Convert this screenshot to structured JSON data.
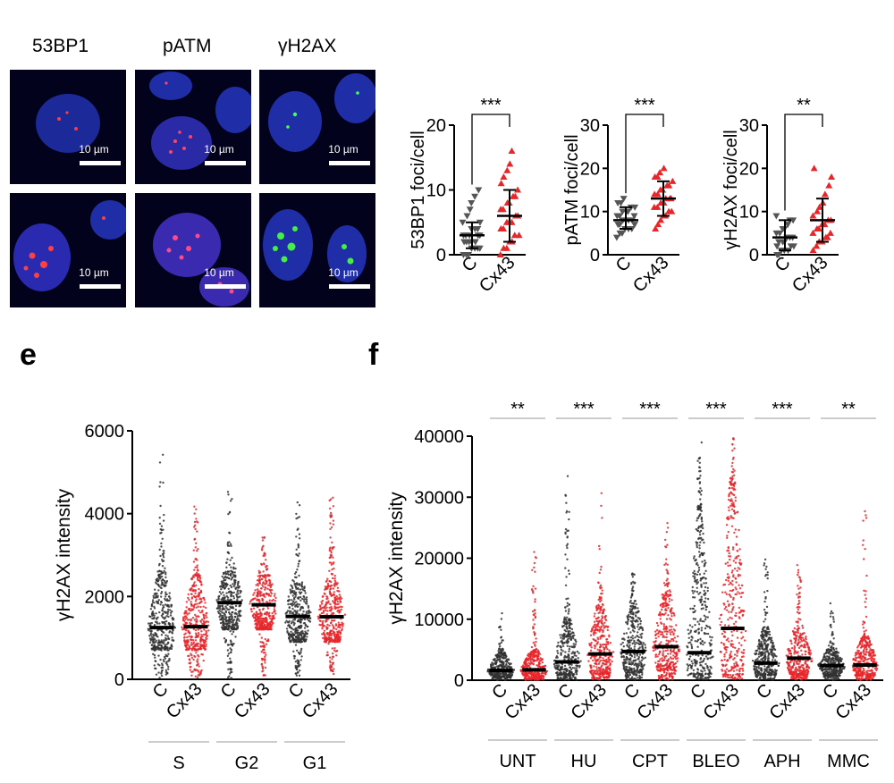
{
  "channels": [
    {
      "label": "53BP1",
      "color": "#e8262a"
    },
    {
      "label": "pATM",
      "color": "#e8262a"
    },
    {
      "label": "γH2AX",
      "color": "#2aa83a"
    }
  ],
  "scale_bar_label": "10 µm",
  "panel_letters": {
    "e": "e",
    "f": "f"
  },
  "chart_data": [
    {
      "type": "scatter",
      "ylabel": "53BP1 foci/cell",
      "ylim": [
        0,
        20
      ],
      "yticks": [
        0,
        10,
        20
      ],
      "categories": [
        "C",
        "Cx43"
      ],
      "significance": [
        "***"
      ],
      "series": [
        {
          "values": [
            0,
            0,
            0,
            1,
            1,
            1,
            1,
            2,
            2,
            2,
            2,
            2,
            3,
            3,
            3,
            3,
            3,
            4,
            4,
            4,
            5,
            5,
            6,
            7,
            8,
            9,
            10
          ],
          "mean": 3,
          "sd_low": 1,
          "sd_high": 5
        },
        {
          "values": [
            0,
            1,
            1,
            2,
            2,
            3,
            3,
            4,
            4,
            5,
            5,
            5,
            6,
            6,
            7,
            7,
            8,
            8,
            9,
            9,
            10,
            11,
            12,
            13,
            14,
            16
          ],
          "mean": 6,
          "sd_low": 2,
          "sd_high": 10
        }
      ]
    },
    {
      "type": "scatter",
      "ylabel": "pATM foci/cell",
      "ylim": [
        0,
        30
      ],
      "yticks": [
        0,
        10,
        20,
        30
      ],
      "categories": [
        "C",
        "Cx43"
      ],
      "significance": [
        "***"
      ],
      "series": [
        {
          "values": [
            4,
            5,
            5,
            6,
            6,
            6,
            7,
            7,
            7,
            8,
            8,
            8,
            8,
            9,
            9,
            9,
            10,
            10,
            10,
            11,
            11,
            12,
            12,
            13
          ],
          "mean": 8,
          "sd_low": 6,
          "sd_high": 11
        },
        {
          "values": [
            6,
            7,
            8,
            9,
            9,
            10,
            10,
            11,
            11,
            12,
            12,
            13,
            13,
            13,
            14,
            14,
            15,
            15,
            16,
            16,
            17,
            18,
            18,
            19,
            20
          ],
          "mean": 13,
          "sd_low": 9,
          "sd_high": 17
        }
      ]
    },
    {
      "type": "scatter",
      "ylabel": "γH2AX foci/cell",
      "ylim": [
        0,
        30
      ],
      "yticks": [
        0,
        10,
        20,
        30
      ],
      "categories": [
        "C",
        "Cx43"
      ],
      "significance": [
        "**"
      ],
      "series": [
        {
          "values": [
            0,
            0,
            1,
            1,
            1,
            2,
            2,
            2,
            3,
            3,
            3,
            4,
            4,
            4,
            5,
            5,
            6,
            6,
            7,
            8,
            8,
            9
          ],
          "mean": 4,
          "sd_low": 1,
          "sd_high": 8
        },
        {
          "values": [
            1,
            2,
            3,
            3,
            4,
            4,
            5,
            5,
            6,
            6,
            7,
            7,
            8,
            8,
            9,
            10,
            11,
            12,
            14,
            16,
            18,
            20
          ],
          "mean": 8,
          "sd_low": 3,
          "sd_high": 13
        }
      ]
    },
    {
      "type": "scatter",
      "ylabel": "γH2AX intensity",
      "ylim": [
        0,
        6000
      ],
      "yticks": [
        0,
        2000,
        4000,
        6000
      ],
      "categories": [
        "C",
        "Cx43",
        "C",
        "Cx43",
        "C",
        "Cx43"
      ],
      "groups": [
        "S",
        "G2",
        "G1"
      ],
      "series": [
        {
          "median": 1250,
          "p10": 700,
          "p90": 2600,
          "max": 5500
        },
        {
          "median": 1270,
          "p10": 700,
          "p90": 2500,
          "max": 4200
        },
        {
          "median": 1850,
          "p10": 1200,
          "p90": 2600,
          "max": 4600
        },
        {
          "median": 1800,
          "p10": 1200,
          "p90": 2500,
          "max": 3600
        },
        {
          "median": 1520,
          "p10": 900,
          "p90": 2300,
          "max": 4400
        },
        {
          "median": 1510,
          "p10": 900,
          "p90": 2300,
          "max": 4500
        }
      ]
    },
    {
      "type": "scatter",
      "ylabel": "γH2AX intensity",
      "ylim": [
        0,
        40000
      ],
      "yticks": [
        0,
        10000,
        20000,
        30000,
        40000
      ],
      "categories": [
        "C",
        "Cx43",
        "C",
        "Cx43",
        "C",
        "Cx43",
        "C",
        "Cx43",
        "C",
        "Cx43",
        "C",
        "Cx43"
      ],
      "groups": [
        "UNT",
        "HU",
        "CPT",
        "BLEO",
        "APH",
        "MMC"
      ],
      "significance": [
        "**",
        "***",
        "***",
        "***",
        "***",
        "**"
      ],
      "series": [
        {
          "median": 1600,
          "p10": 500,
          "p90": 4500,
          "max": 11000
        },
        {
          "median": 1700,
          "p10": 500,
          "p90": 5000,
          "max": 22000
        },
        {
          "median": 3000,
          "p10": 800,
          "p90": 10000,
          "max": 34000
        },
        {
          "median": 4300,
          "p10": 1000,
          "p90": 12000,
          "max": 31000
        },
        {
          "median": 4700,
          "p10": 1200,
          "p90": 12000,
          "max": 18000
        },
        {
          "median": 5500,
          "p10": 1500,
          "p90": 14000,
          "max": 26000
        },
        {
          "median": 4500,
          "p10": 1000,
          "p90": 28000,
          "max": 39000
        },
        {
          "median": 8500,
          "p10": 1500,
          "p90": 32000,
          "max": 40000
        },
        {
          "median": 2800,
          "p10": 800,
          "p90": 8000,
          "max": 20000
        },
        {
          "median": 3600,
          "p10": 900,
          "p90": 8500,
          "max": 21000
        },
        {
          "median": 2400,
          "p10": 700,
          "p90": 5000,
          "max": 13000
        },
        {
          "median": 2500,
          "p10": 700,
          "p90": 7000,
          "max": 28000
        }
      ]
    }
  ]
}
